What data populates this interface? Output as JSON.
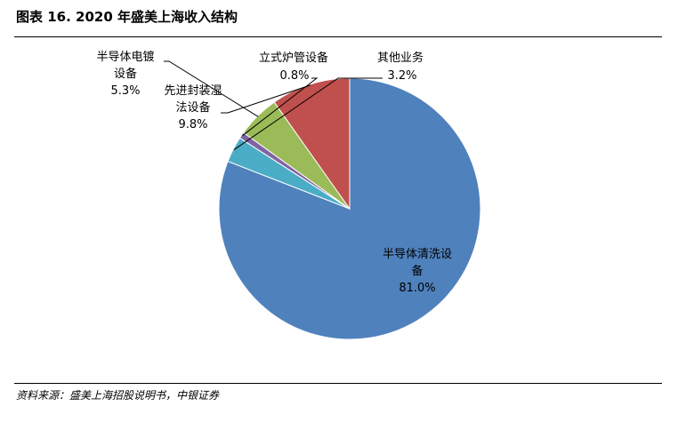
{
  "figure": {
    "title": "图表 16. 2020 年盛美上海收入结构",
    "source": "资料来源：盛美上海招股说明书，中银证券"
  },
  "chart_data": {
    "type": "pie",
    "title": "",
    "categories": [
      "半导体清洗设备",
      "先进封装湿法设备",
      "半导体电镀设备",
      "立式炉管设备",
      "其他业务"
    ],
    "values": [
      81.0,
      9.8,
      5.3,
      0.8,
      3.2
    ],
    "value_labels": [
      "81.0%",
      "9.8%",
      "5.3%",
      "0.8%",
      "3.2%"
    ],
    "label_lines": [
      [
        "半导体清洗设",
        "备"
      ],
      [
        "先进封装湿",
        "法设备"
      ],
      [
        "半导体电镀",
        "设备"
      ],
      [
        "立式炉管设备"
      ],
      [
        "其他业务"
      ]
    ],
    "colors": [
      "#4F81BD",
      "#C0504D",
      "#9BBB59",
      "#8064A2",
      "#4BACC6"
    ],
    "legend": "none",
    "start": "12 o'clock, clockwise"
  }
}
